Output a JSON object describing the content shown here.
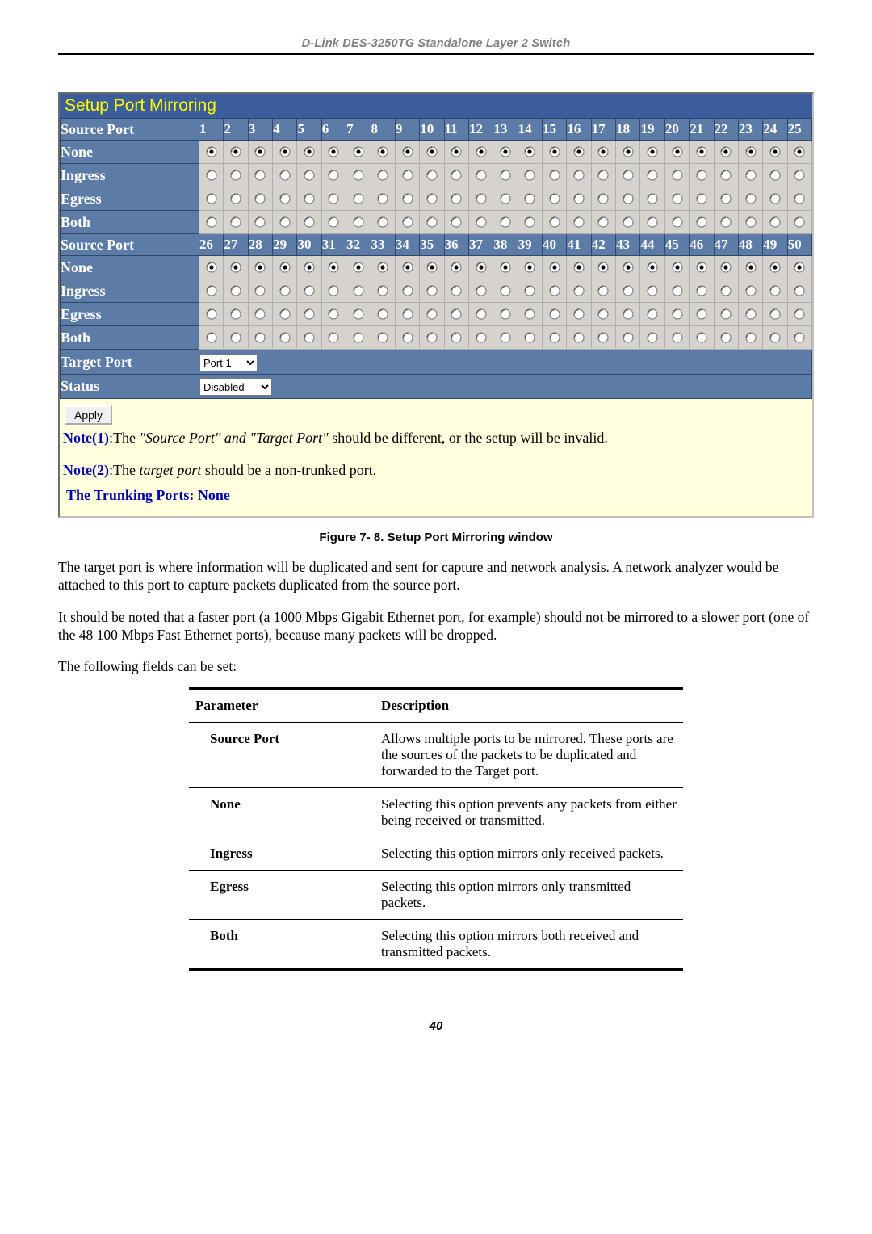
{
  "doc_header": "D-Link DES-3250TG Standalone Layer 2 Switch",
  "panel": {
    "title": "Setup Port Mirroring",
    "source_port_label": "Source Port",
    "row_labels": [
      "None",
      "Ingress",
      "Egress",
      "Both"
    ],
    "selected_row_idx": 0,
    "ports_a": [
      "1",
      "2",
      "3",
      "4",
      "5",
      "6",
      "7",
      "8",
      "9",
      "10",
      "11",
      "12",
      "13",
      "14",
      "15",
      "16",
      "17",
      "18",
      "19",
      "20",
      "21",
      "22",
      "23",
      "24",
      "25"
    ],
    "ports_b": [
      "26",
      "27",
      "28",
      "29",
      "30",
      "31",
      "32",
      "33",
      "34",
      "35",
      "36",
      "37",
      "38",
      "39",
      "40",
      "41",
      "42",
      "43",
      "44",
      "45",
      "46",
      "47",
      "48",
      "49",
      "50"
    ],
    "target_port_label": "Target Port",
    "target_port_value": "Port 1",
    "status_label": "Status",
    "status_value": "Disabled",
    "apply_label": "Apply",
    "note1_label": "Note(1)",
    "note1_text_prefix": ":The ",
    "note1_quote": "\"Source Port\" and \"Target Port\"",
    "note1_text_suffix": " should be different, or the setup will be invalid.",
    "note2_label": "Note(2)",
    "note2_text_prefix": ":The ",
    "note2_ital": "target port",
    "note2_text_suffix": " should be a non-trunked port.",
    "trunking_text": "The Trunking Ports: None"
  },
  "caption": "Figure 7- 8.  Setup Port Mirroring window",
  "para1": "The target port is where information will be duplicated and sent for capture and network analysis. A network analyzer would be attached to this port to capture packets duplicated from the source port.",
  "para2": "It should be noted that a faster port (a 1000 Mbps Gigabit Ethernet port, for example) should not be mirrored to a slower port (one of the 48 100 Mbps Fast Ethernet ports), because many packets will be dropped.",
  "para3": "The following fields can be set:",
  "param_table": {
    "head": [
      "Parameter",
      "Description"
    ],
    "rows": [
      [
        "Source Port",
        "Allows multiple ports to be mirrored. These ports are the sources of the packets to be duplicated and forwarded to the Target port."
      ],
      [
        "None",
        "Selecting this option prevents any packets from either being received or transmitted."
      ],
      [
        "Ingress",
        "Selecting this option mirrors only received packets."
      ],
      [
        "Egress",
        "Selecting this option mirrors only transmitted packets."
      ],
      [
        "Both",
        "Selecting this option mirrors both received and transmitted packets."
      ]
    ]
  },
  "page_number": "40",
  "colors": {
    "panel_bg": "#ffffdd",
    "header_bg": "#3b5d9b",
    "title_color": "#ffff00",
    "row_hdr_bg": "#5c7ba6",
    "row_hdr_border": "#304868",
    "cell_bg": "#d6d3ce",
    "cell_border": "#aeaeae",
    "note_blue": "#0000aa",
    "grey_text": "#808080"
  },
  "fontsizes_pt": {
    "panel_title": 16,
    "table_text": 13,
    "body": 13,
    "caption": 11,
    "header": 11
  }
}
